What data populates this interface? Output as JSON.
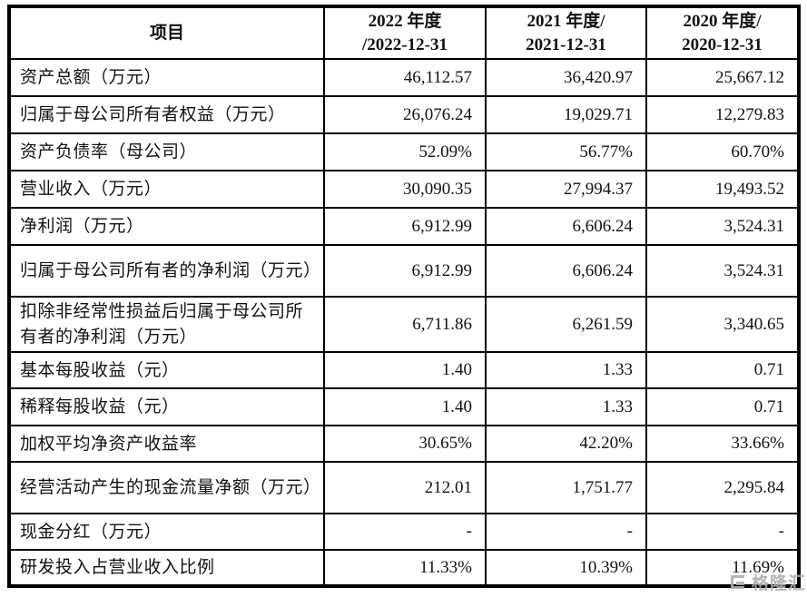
{
  "table": {
    "item_header": "项目",
    "columns": [
      {
        "line1": "2022 年度",
        "line2": "/2022-12-31"
      },
      {
        "line1": "2021 年度/",
        "line2": "2021-12-31"
      },
      {
        "line1": "2020 年度/",
        "line2": "2020-12-31"
      }
    ],
    "rows": [
      {
        "label": "资产总额（万元）",
        "values": [
          "46,112.57",
          "36,420.97",
          "25,667.12"
        ]
      },
      {
        "label": "归属于母公司所有者权益（万元）",
        "values": [
          "26,076.24",
          "19,029.71",
          "12,279.83"
        ]
      },
      {
        "label": "资产负债率（母公司）",
        "values": [
          "52.09%",
          "56.77%",
          "60.70%"
        ]
      },
      {
        "label": "营业收入（万元）",
        "values": [
          "30,090.35",
          "27,994.37",
          "19,493.52"
        ]
      },
      {
        "label": "净利润（万元）",
        "values": [
          "6,912.99",
          "6,606.24",
          "3,524.31"
        ]
      },
      {
        "label": "归属于母公司所有者的净利润（万元）",
        "values": [
          "6,912.99",
          "6,606.24",
          "3,524.31"
        ]
      },
      {
        "label": "扣除非经常性损益后归属于母公司所有者的净利润（万元）",
        "values": [
          "6,711.86",
          "6,261.59",
          "3,340.65"
        ]
      },
      {
        "label": "基本每股收益（元）",
        "values": [
          "1.40",
          "1.33",
          "0.71"
        ]
      },
      {
        "label": "稀释每股收益（元）",
        "values": [
          "1.40",
          "1.33",
          "0.71"
        ]
      },
      {
        "label": "加权平均净资产收益率",
        "values": [
          "30.65%",
          "42.20%",
          "33.66%"
        ]
      },
      {
        "label": "经营活动产生的现金流量净额（万元）",
        "values": [
          "212.01",
          "1,751.77",
          "2,295.84"
        ]
      },
      {
        "label": "现金分红（万元）",
        "values": [
          "-",
          "-",
          "-"
        ]
      },
      {
        "label": "研发投入占营业收入比例",
        "values": [
          "11.33%",
          "10.39%",
          "11.69%"
        ]
      }
    ]
  },
  "watermark": {
    "text": "格隆汇"
  },
  "colors": {
    "border": "#000000",
    "text": "#121212",
    "watermark": "#aeaeae"
  }
}
